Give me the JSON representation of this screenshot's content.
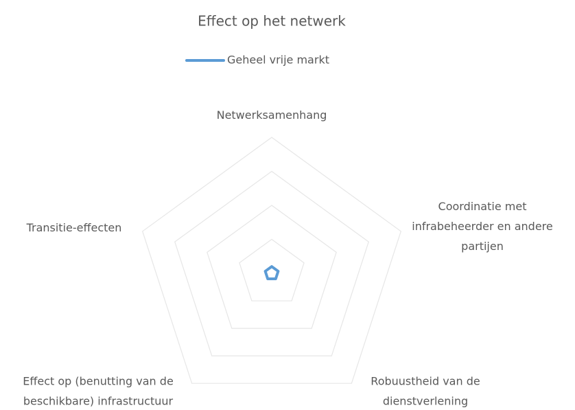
{
  "chart_data": {
    "type": "radar",
    "title": "Effect op het netwerk",
    "categories": [
      "Netwerksamenhang",
      "Coordinatie met\ninfrabeheerder en andere\npartijen",
      "Robuustheid van de\ndienstverlening",
      "Effect op (benutting van de\nbeschikbare) infrastructuur",
      "Transitie-effecten"
    ],
    "series": [
      {
        "name": "Geheel vrije markt",
        "color": "#5b9bd5",
        "values": [
          0.2,
          0.2,
          0.2,
          0.2,
          0.2
        ]
      }
    ],
    "ylim": [
      0,
      4
    ],
    "yticks": [
      1,
      2,
      3,
      4
    ],
    "grid": true,
    "legend": "top"
  }
}
